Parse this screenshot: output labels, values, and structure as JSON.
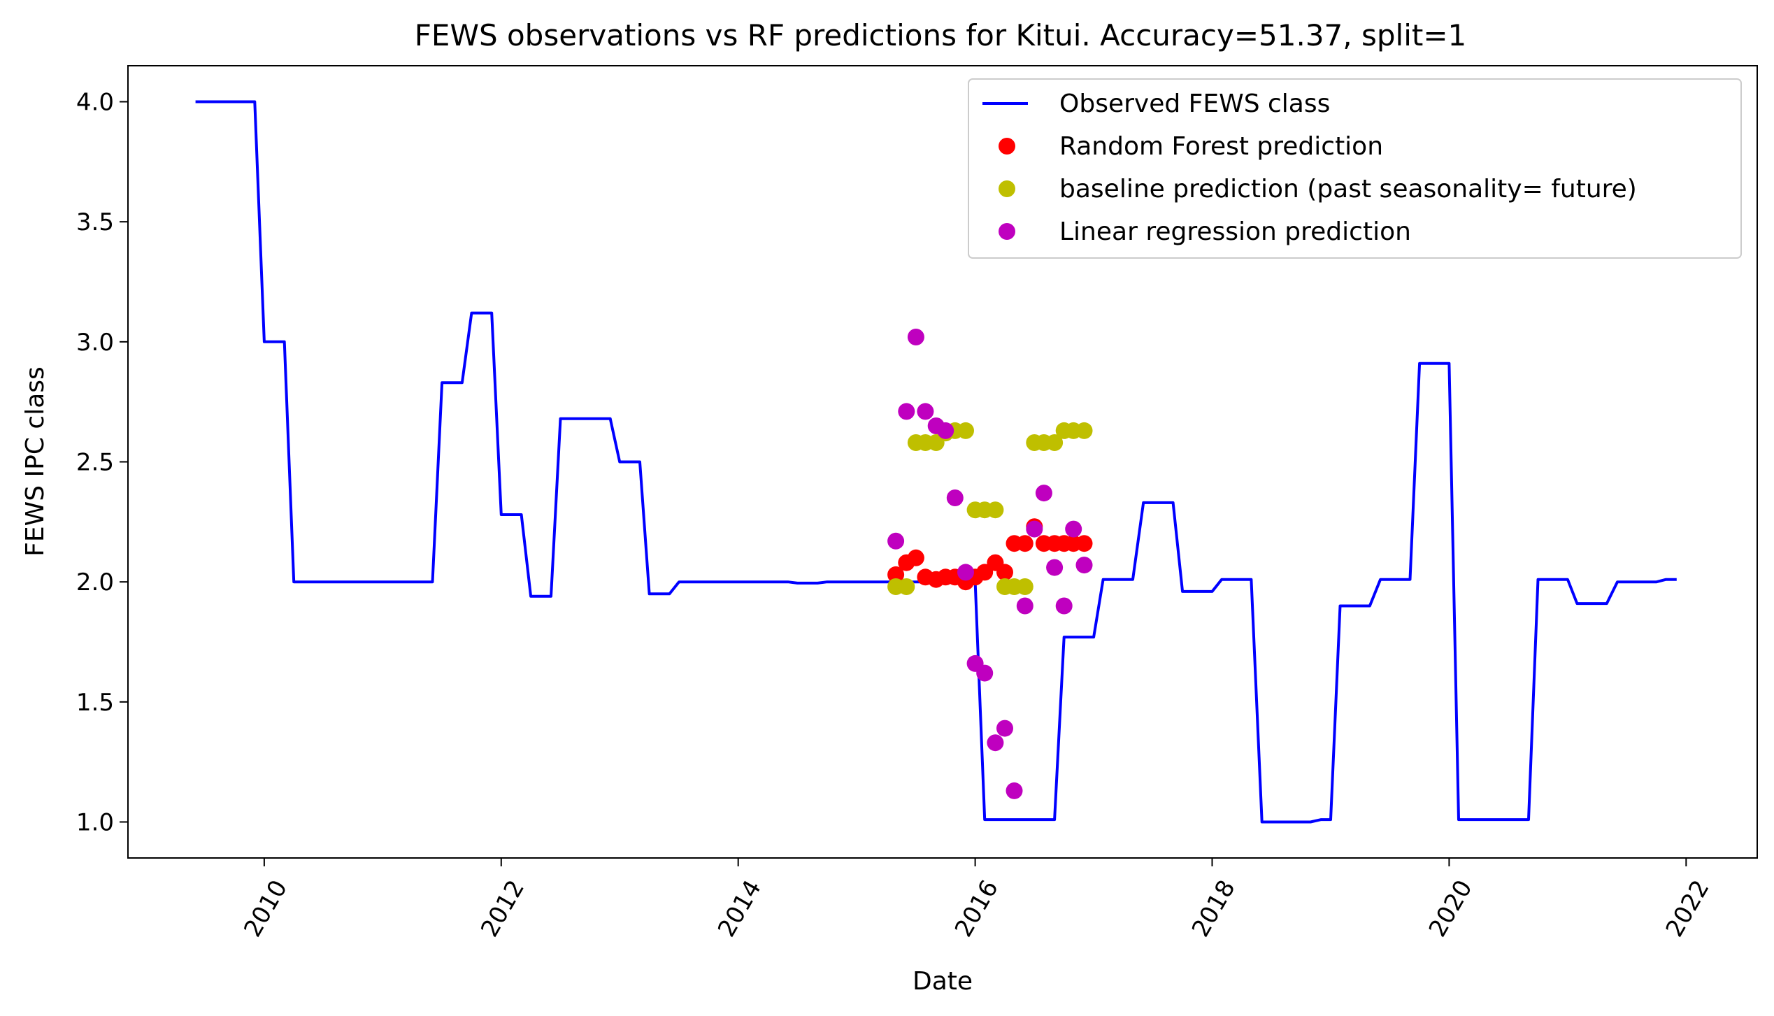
{
  "chart_data": {
    "type": "line",
    "title": "FEWS observations vs RF predictions for Kitui. Accuracy=51.37, split=1",
    "xlabel": "Date",
    "ylabel": "FEWS IPC class",
    "xlim": [
      2008.85,
      2022.6
    ],
    "ylim": [
      0.85,
      4.15
    ],
    "xticks": [
      2010,
      2012,
      2014,
      2016,
      2018,
      2020,
      2022
    ],
    "xtick_labels": [
      "2010",
      "2012",
      "2014",
      "2016",
      "2018",
      "2020",
      "2022"
    ],
    "yticks": [
      1.0,
      1.5,
      2.0,
      2.5,
      3.0,
      3.5,
      4.0
    ],
    "ytick_labels": [
      "1.0",
      "1.5",
      "2.0",
      "2.5",
      "3.0",
      "3.5",
      "4.0"
    ],
    "grid": false,
    "legend_position": "top-right",
    "series": [
      {
        "name": "Observed FEWS class",
        "kind": "line",
        "color": "#0000ff",
        "points": [
          [
            2009.42,
            4.0
          ],
          [
            2009.5,
            4.0
          ],
          [
            2009.92,
            4.0
          ],
          [
            2010.0,
            3.0
          ],
          [
            2010.17,
            3.0
          ],
          [
            2010.25,
            2.0
          ],
          [
            2010.5,
            2.0
          ],
          [
            2011.42,
            2.0
          ],
          [
            2011.5,
            2.83
          ],
          [
            2011.67,
            2.83
          ],
          [
            2011.75,
            3.12
          ],
          [
            2011.92,
            3.12
          ],
          [
            2012.0,
            2.28
          ],
          [
            2012.17,
            2.28
          ],
          [
            2012.25,
            1.94
          ],
          [
            2012.42,
            1.94
          ],
          [
            2012.5,
            2.68
          ],
          [
            2012.92,
            2.68
          ],
          [
            2013.0,
            2.5
          ],
          [
            2013.17,
            2.5
          ],
          [
            2013.25,
            1.95
          ],
          [
            2013.42,
            1.95
          ],
          [
            2013.5,
            2.0
          ],
          [
            2014.42,
            2.0
          ],
          [
            2014.5,
            1.995
          ],
          [
            2014.67,
            1.995
          ],
          [
            2014.75,
            2.0
          ],
          [
            2015.42,
            2.0
          ],
          [
            2015.92,
            2.0
          ],
          [
            2016.0,
            2.0
          ],
          [
            2016.08,
            1.01
          ],
          [
            2016.67,
            1.01
          ],
          [
            2016.75,
            1.77
          ],
          [
            2017.0,
            1.77
          ],
          [
            2017.08,
            2.01
          ],
          [
            2017.33,
            2.01
          ],
          [
            2017.42,
            2.33
          ],
          [
            2017.67,
            2.33
          ],
          [
            2017.75,
            1.96
          ],
          [
            2018.0,
            1.96
          ],
          [
            2018.08,
            2.01
          ],
          [
            2018.33,
            2.01
          ],
          [
            2018.42,
            1.0
          ],
          [
            2018.83,
            1.0
          ],
          [
            2018.92,
            1.01
          ],
          [
            2019.0,
            1.01
          ],
          [
            2019.08,
            1.9
          ],
          [
            2019.33,
            1.9
          ],
          [
            2019.42,
            2.01
          ],
          [
            2019.67,
            2.01
          ],
          [
            2019.75,
            2.91
          ],
          [
            2020.0,
            2.91
          ],
          [
            2020.08,
            1.01
          ],
          [
            2020.67,
            1.01
          ],
          [
            2020.75,
            2.01
          ],
          [
            2021.0,
            2.01
          ],
          [
            2021.08,
            1.91
          ],
          [
            2021.33,
            1.91
          ],
          [
            2021.42,
            2.0
          ],
          [
            2021.75,
            2.0
          ],
          [
            2021.83,
            2.01
          ],
          [
            2021.92,
            2.01
          ]
        ]
      },
      {
        "name": "Random Forest prediction",
        "kind": "scatter",
        "color": "#ff0000",
        "points": [
          [
            2015.33,
            2.03
          ],
          [
            2015.42,
            2.08
          ],
          [
            2015.5,
            2.1
          ],
          [
            2015.58,
            2.02
          ],
          [
            2015.67,
            2.01
          ],
          [
            2015.75,
            2.02
          ],
          [
            2015.83,
            2.02
          ],
          [
            2015.92,
            2.0
          ],
          [
            2016.0,
            2.02
          ],
          [
            2016.08,
            2.04
          ],
          [
            2016.17,
            2.08
          ],
          [
            2016.25,
            2.04
          ],
          [
            2016.33,
            2.16
          ],
          [
            2016.42,
            2.16
          ],
          [
            2016.5,
            2.23
          ],
          [
            2016.58,
            2.16
          ],
          [
            2016.67,
            2.16
          ],
          [
            2016.75,
            2.16
          ],
          [
            2016.83,
            2.16
          ],
          [
            2016.92,
            2.16
          ]
        ]
      },
      {
        "name": "baseline prediction (past seasonality= future)",
        "kind": "scatter",
        "color": "#bfbf00",
        "points": [
          [
            2015.33,
            1.98
          ],
          [
            2015.42,
            1.98
          ],
          [
            2015.5,
            2.58
          ],
          [
            2015.58,
            2.58
          ],
          [
            2015.67,
            2.58
          ],
          [
            2015.75,
            2.62
          ],
          [
            2015.83,
            2.63
          ],
          [
            2015.92,
            2.63
          ],
          [
            2016.0,
            2.3
          ],
          [
            2016.08,
            2.3
          ],
          [
            2016.17,
            2.3
          ],
          [
            2016.25,
            1.98
          ],
          [
            2016.33,
            1.98
          ],
          [
            2016.42,
            1.98
          ],
          [
            2016.5,
            2.58
          ],
          [
            2016.58,
            2.58
          ],
          [
            2016.67,
            2.58
          ],
          [
            2016.75,
            2.63
          ],
          [
            2016.83,
            2.63
          ],
          [
            2016.92,
            2.63
          ]
        ]
      },
      {
        "name": "Linear regression prediction",
        "kind": "scatter",
        "color": "#bf00bf",
        "points": [
          [
            2015.33,
            2.17
          ],
          [
            2015.42,
            2.71
          ],
          [
            2015.5,
            3.02
          ],
          [
            2015.58,
            2.71
          ],
          [
            2015.67,
            2.65
          ],
          [
            2015.75,
            2.63
          ],
          [
            2015.83,
            2.35
          ],
          [
            2015.92,
            2.04
          ],
          [
            2016.0,
            1.66
          ],
          [
            2016.08,
            1.62
          ],
          [
            2016.17,
            1.33
          ],
          [
            2016.25,
            1.39
          ],
          [
            2016.33,
            1.13
          ],
          [
            2016.42,
            1.9
          ],
          [
            2016.5,
            2.22
          ],
          [
            2016.58,
            2.37
          ],
          [
            2016.67,
            2.06
          ],
          [
            2016.75,
            1.9
          ],
          [
            2016.83,
            2.22
          ],
          [
            2016.92,
            2.07
          ]
        ]
      }
    ]
  }
}
